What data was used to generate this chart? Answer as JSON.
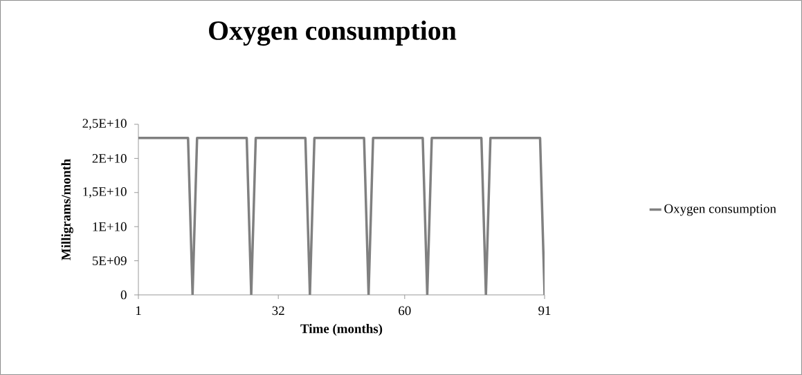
{
  "chart_data": {
    "type": "line",
    "title": "Oxygen consumption",
    "xlabel": "Time (months)",
    "ylabel": "Milligrams/month",
    "x": [
      1,
      12,
      13,
      14,
      25,
      26,
      27,
      38,
      39,
      40,
      51,
      52,
      53,
      64,
      65,
      66,
      77,
      78,
      79,
      90,
      91
    ],
    "series": [
      {
        "name": "Oxygen consumption",
        "color": "#808080",
        "values": [
          23000000000,
          23000000000,
          0,
          23000000000,
          23000000000,
          0,
          23000000000,
          23000000000,
          0,
          23000000000,
          23000000000,
          0,
          23000000000,
          23000000000,
          0,
          23000000000,
          23000000000,
          0,
          23000000000,
          23000000000,
          0
        ]
      }
    ],
    "xlim": [
      1,
      91
    ],
    "xticks": [
      1,
      32,
      60,
      91
    ],
    "ylim": [
      0,
      25000000000
    ],
    "yticks": [
      0,
      {
        "value": 5000000000,
        "label": "5E+09"
      },
      {
        "value": 10000000000,
        "label": "1E+10"
      },
      {
        "value": 15000000000,
        "label": "1,5E+10"
      },
      {
        "value": 20000000000,
        "label": "2E+10"
      },
      {
        "value": 25000000000,
        "label": "2,5E+10"
      }
    ],
    "legend": "right"
  }
}
